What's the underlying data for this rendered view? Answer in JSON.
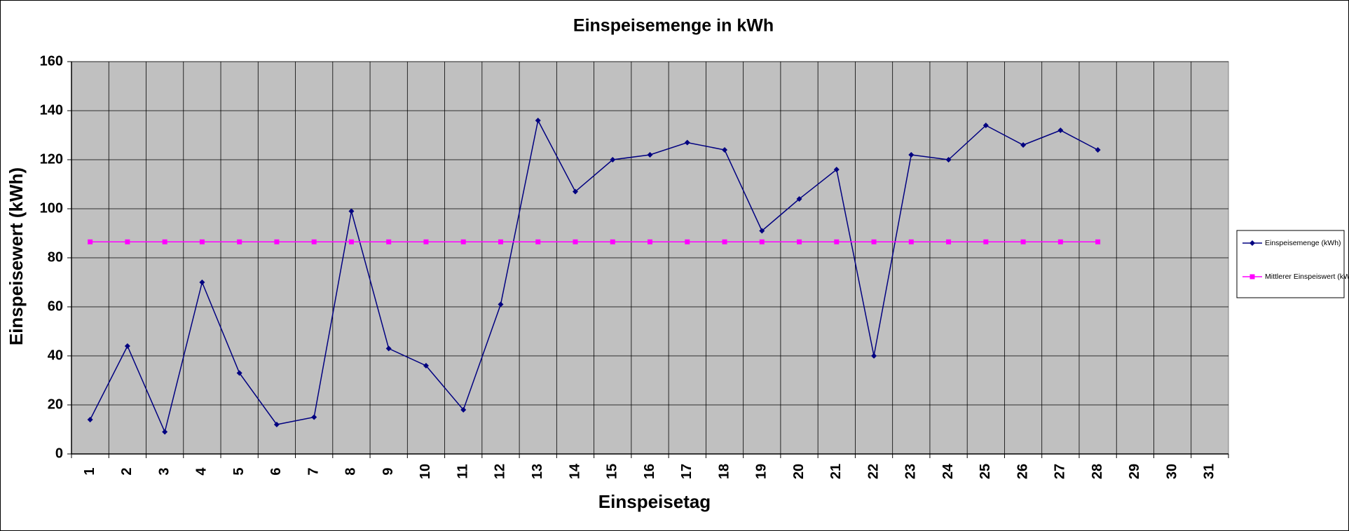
{
  "chart_data": {
    "type": "line",
    "title": "Einspeisemenge in kWh",
    "x_label": "Einspeisetag",
    "y_label": "Einspeisewert  (kWh)",
    "categories": [
      "1",
      "2",
      "3",
      "4",
      "5",
      "6",
      "7",
      "8",
      "9",
      "10",
      "11",
      "12",
      "13",
      "14",
      "15",
      "16",
      "17",
      "18",
      "19",
      "20",
      "21",
      "22",
      "23",
      "24",
      "25",
      "26",
      "27",
      "28",
      "29",
      "30",
      "31"
    ],
    "series": [
      {
        "name": "Einspeisemenge (kWh)",
        "color": "#000080",
        "marker": "diamond",
        "values": [
          14,
          44,
          9,
          70,
          33,
          12,
          15,
          99,
          43,
          36,
          18,
          61,
          136,
          107,
          120,
          122,
          127,
          124,
          91,
          104,
          116,
          40,
          122,
          120,
          134,
          126,
          132,
          124,
          null,
          null,
          null
        ]
      },
      {
        "name": "Mittlerer Einspeiswert (kWh)",
        "color": "#ff00ff",
        "marker": "square",
        "values": [
          86.5,
          86.5,
          86.5,
          86.5,
          86.5,
          86.5,
          86.5,
          86.5,
          86.5,
          86.5,
          86.5,
          86.5,
          86.5,
          86.5,
          86.5,
          86.5,
          86.5,
          86.5,
          86.5,
          86.5,
          86.5,
          86.5,
          86.5,
          86.5,
          86.5,
          86.5,
          86.5,
          86.5,
          null,
          null,
          null
        ]
      }
    ],
    "ylim": [
      0,
      160
    ],
    "yticks": [
      0,
      20,
      40,
      60,
      80,
      100,
      120,
      140,
      160
    ],
    "grid": true,
    "legend": "right",
    "plot_background": "#c0c0c0"
  }
}
